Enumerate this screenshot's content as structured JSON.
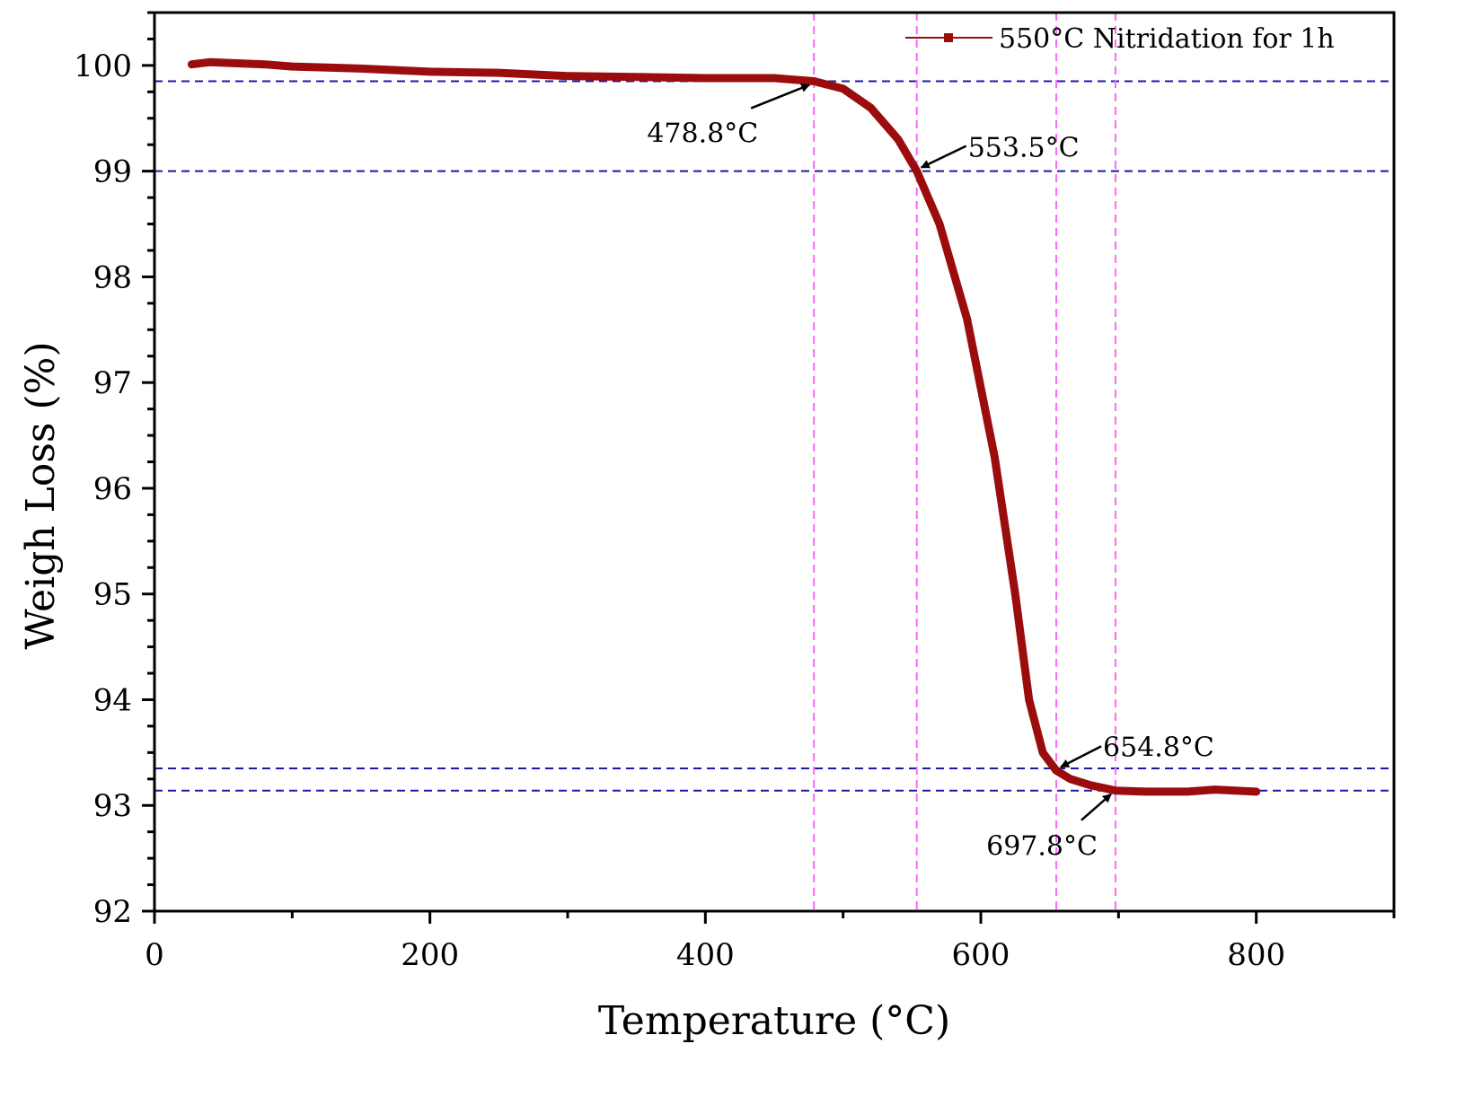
{
  "chart_data": {
    "type": "line",
    "title": "",
    "xlabel": "Temperature (°C)",
    "ylabel": "Weigh Loss (%)",
    "xlim": [
      0,
      900
    ],
    "ylim": [
      92,
      100.5
    ],
    "x_ticks": [
      0,
      200,
      400,
      600,
      800
    ],
    "x_tick_labels": [
      "0",
      "200",
      "400",
      "600",
      "800"
    ],
    "y_ticks": [
      92,
      93,
      94,
      95,
      96,
      97,
      98,
      99,
      100
    ],
    "y_tick_labels": [
      "92",
      "93",
      "94",
      "95",
      "96",
      "97",
      "98",
      "99",
      "100"
    ],
    "legend": {
      "position": "top-right",
      "entries": [
        "550°C Nitridation for 1h"
      ]
    },
    "series": [
      {
        "name": "550°C Nitridation for 1h",
        "color": "#9b0d0d",
        "x": [
          27,
          40,
          60,
          80,
          100,
          150,
          200,
          250,
          300,
          350,
          400,
          450,
          478.8,
          500,
          520,
          540,
          553.5,
          570,
          590,
          610,
          625,
          635,
          645,
          654.8,
          665,
          680,
          697.8,
          720,
          750,
          770,
          800
        ],
        "y": [
          100.01,
          100.03,
          100.02,
          100.01,
          99.99,
          99.97,
          99.94,
          99.93,
          99.9,
          99.89,
          99.88,
          99.88,
          99.85,
          99.78,
          99.6,
          99.3,
          99.0,
          98.5,
          97.6,
          96.3,
          95.0,
          94.0,
          93.5,
          93.33,
          93.25,
          93.19,
          93.14,
          93.13,
          93.13,
          93.15,
          93.13
        ]
      }
    ],
    "reference_lines": {
      "horizontal": [
        99.85,
        99.0,
        93.35,
        93.14
      ],
      "horizontal_color": "#1a1aa6",
      "vertical": [
        478.8,
        553.5,
        654.8,
        697.8
      ],
      "vertical_color": "#ff66ff"
    },
    "annotations": [
      {
        "label": "478.8°C",
        "x": 478.8,
        "y": 99.85
      },
      {
        "label": "553.5°C",
        "x": 553.5,
        "y": 99.0
      },
      {
        "label": "654.8°C",
        "x": 654.8,
        "y": 93.33
      },
      {
        "label": "697.8°C",
        "x": 697.8,
        "y": 93.14
      }
    ]
  }
}
